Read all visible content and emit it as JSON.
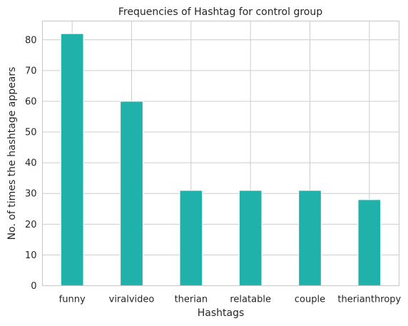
{
  "chart_data": {
    "type": "bar",
    "title": "Frequencies of Hashtag for control group",
    "xlabel": "Hashtags",
    "ylabel": "No. of times the hashtage appears",
    "categories": [
      "funny",
      "viralvideo",
      "therian",
      "relatable",
      "couple",
      "therianthropy"
    ],
    "values": [
      82,
      60,
      31,
      31,
      31,
      28
    ],
    "ylim": [
      0,
      86.1
    ],
    "yticks": [
      0,
      10,
      20,
      30,
      40,
      50,
      60,
      70,
      80
    ],
    "grid": true,
    "bar_color": "#20b2aa"
  }
}
